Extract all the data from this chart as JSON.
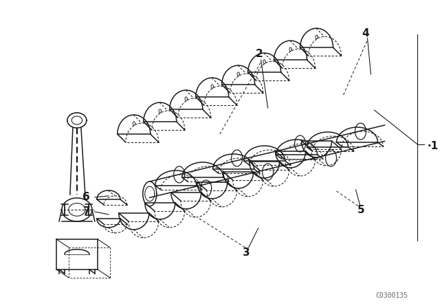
{
  "background_color": "#ffffff",
  "line_color": "#1a1a1a",
  "diagram_code": "C0300135",
  "fig_width": 6.4,
  "fig_height": 4.48,
  "dpi": 100,
  "upper_shells_n": 8,
  "lower_shells_n": 8,
  "crankshaft_throws": 7,
  "label_fontsize": 11,
  "code_fontsize": 7
}
